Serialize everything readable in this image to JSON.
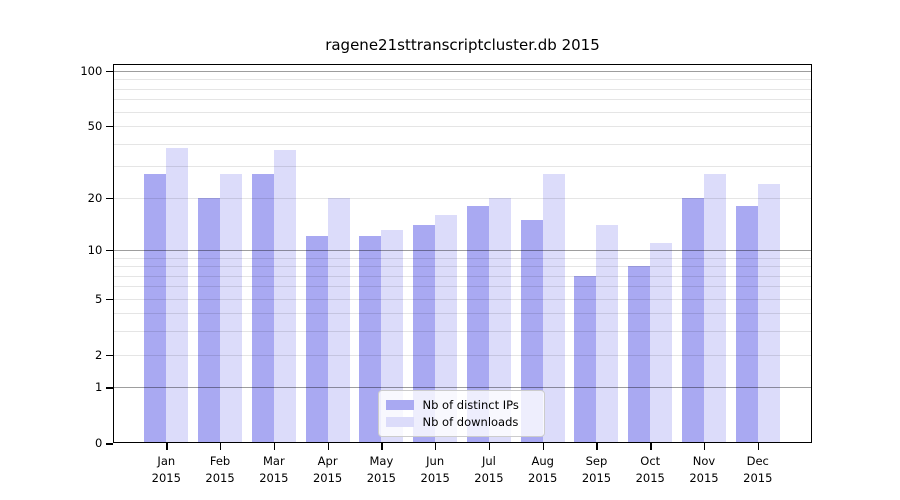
{
  "chart_data": {
    "type": "bar",
    "title": "ragene21sttranscriptcluster.db 2015",
    "year_label": "2015",
    "categories": [
      "Jan",
      "Feb",
      "Mar",
      "Apr",
      "May",
      "Jun",
      "Jul",
      "Aug",
      "Sep",
      "Oct",
      "Nov",
      "Dec"
    ],
    "series": [
      {
        "name": "Nb of distinct IPs",
        "color": "#a9a9f2",
        "values": [
          27,
          20,
          27,
          12,
          12,
          14,
          18,
          15,
          7,
          8,
          20,
          18
        ]
      },
      {
        "name": "Nb of downloads",
        "color": "#dcdcfa",
        "values": [
          38,
          27,
          37,
          20,
          13,
          16,
          20,
          27,
          14,
          11,
          27,
          24
        ]
      }
    ],
    "y_axis": {
      "scale": "log1p",
      "tick_labels": [
        100,
        50,
        20,
        10,
        5,
        2,
        1,
        0
      ],
      "major_gridlines": [
        1,
        10,
        100
      ],
      "minor_gridlines": [
        2,
        3,
        4,
        5,
        6,
        7,
        8,
        9,
        20,
        30,
        40,
        50,
        60,
        70,
        80,
        90
      ],
      "ylim": [
        0,
        100
      ]
    },
    "legend": {
      "position": "lower center inside",
      "entries": [
        "Nb of distinct IPs",
        "Nb of downloads"
      ]
    },
    "grid": "on"
  }
}
